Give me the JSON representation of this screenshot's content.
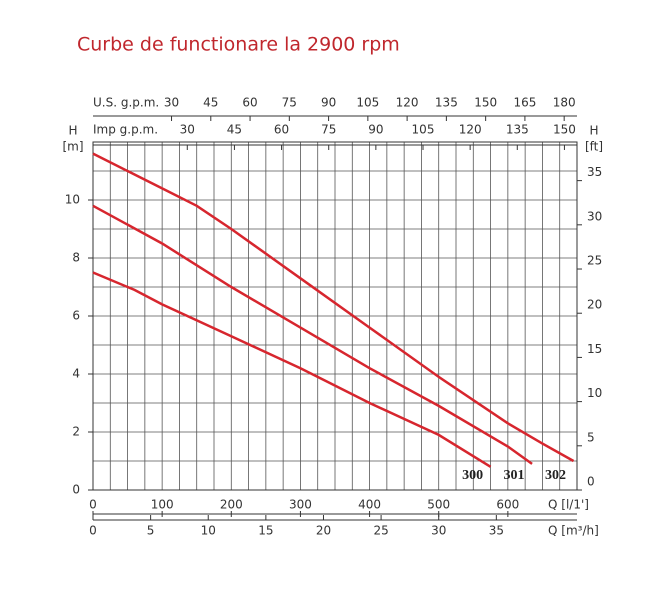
{
  "chart_data": {
    "type": "line",
    "title": "Curbe de functionare la 2900 rpm",
    "x_label": "Q [l/1']",
    "y_label": "H",
    "y_unit": "[m]",
    "y2_label": "H",
    "y2_unit": "[ft]",
    "xlim": [
      0,
      700
    ],
    "xticks": [
      0,
      100,
      200,
      300,
      400,
      500,
      600
    ],
    "ylim": [
      0,
      12
    ],
    "yticks": [
      0,
      2,
      4,
      6,
      8,
      10
    ],
    "y2lim": [
      0,
      39.37
    ],
    "y2ticks": [
      0,
      5,
      10,
      15,
      20,
      25,
      30,
      35
    ],
    "extra_x_axes": [
      {
        "label": "U.S. g.p.m.",
        "position": "top",
        "lim": [
          0,
          184.9
        ],
        "ticks": [
          30,
          45,
          60,
          75,
          90,
          105,
          120,
          135,
          150,
          165,
          180
        ]
      },
      {
        "label": "Imp g.p.m.",
        "position": "top",
        "lim": [
          0,
          154
        ],
        "ticks": [
          30,
          45,
          60,
          75,
          90,
          105,
          120,
          135,
          150
        ]
      },
      {
        "label": "Q [m³/h]",
        "position": "bottom",
        "lim": [
          0,
          42
        ],
        "ticks": [
          0,
          5,
          10,
          15,
          20,
          25,
          30,
          35
        ]
      }
    ],
    "grid": true,
    "series": [
      {
        "name": "300",
        "color": "#d7262e",
        "x": [
          0,
          60,
          100,
          200,
          300,
          400,
          500,
          575
        ],
        "values": [
          7.5,
          6.9,
          6.4,
          5.3,
          4.2,
          3.0,
          1.9,
          0.8
        ]
      },
      {
        "name": "301",
        "color": "#d7262e",
        "x": [
          0,
          100,
          200,
          300,
          400,
          500,
          600,
          635
        ],
        "values": [
          9.8,
          8.5,
          7.0,
          5.6,
          4.2,
          2.9,
          1.5,
          0.9
        ]
      },
      {
        "name": "302",
        "color": "#d7262e",
        "x": [
          0,
          50,
          100,
          150,
          200,
          300,
          400,
          500,
          600,
          650,
          695
        ],
        "values": [
          11.6,
          11.0,
          10.4,
          9.8,
          9.0,
          7.3,
          5.6,
          3.9,
          2.3,
          1.6,
          1.0
        ]
      }
    ]
  }
}
